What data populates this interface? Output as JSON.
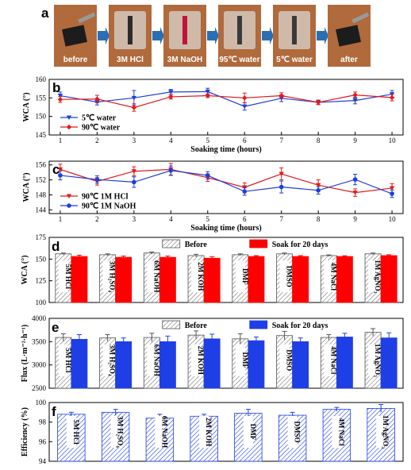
{
  "panel_a": {
    "label": "a",
    "steps": [
      "before",
      "3M HCl",
      "3M NaOH",
      "95℃ water",
      "5℃ water",
      "after"
    ],
    "photo_bg": "#b06a3c",
    "arrow_color": "#2a6fb5"
  },
  "chart_data": [
    {
      "panel": "b",
      "type": "line",
      "xlabel": "Soaking time (hours)",
      "ylabel": "WCA (°)",
      "x": [
        1,
        2,
        3,
        4,
        5,
        6,
        7,
        8,
        9,
        10
      ],
      "xlim": [
        0.7,
        10.3
      ],
      "ylim": [
        145,
        160
      ],
      "yticks": [
        145,
        150,
        155,
        160
      ],
      "series": [
        {
          "name": "5℃ water",
          "color": "#1f3fd6",
          "marker": "triangle-down",
          "values": [
            155.6,
            153.9,
            155.0,
            156.6,
            156.7,
            152.7,
            154.9,
            153.8,
            154.3,
            156.0
          ],
          "err": [
            1.0,
            0.8,
            2.0,
            0.7,
            0.9,
            1.0,
            0.9,
            0.6,
            0.9,
            1.0
          ]
        },
        {
          "name": "90℃ water",
          "color": "#e01b1b",
          "marker": "diamond",
          "values": [
            154.6,
            154.7,
            152.4,
            155.3,
            155.6,
            155.0,
            155.6,
            153.8,
            155.8,
            155.1
          ],
          "err": [
            0.8,
            1.0,
            1.0,
            0.6,
            0.5,
            1.3,
            0.8,
            0.6,
            0.8,
            0.9
          ]
        }
      ]
    },
    {
      "panel": "c",
      "type": "line",
      "xlabel": "Soaking time (hours)",
      "ylabel": "WCA (°)",
      "x": [
        1,
        2,
        3,
        4,
        5,
        6,
        7,
        8,
        9,
        10
      ],
      "xlim": [
        0.7,
        10.3
      ],
      "ylim": [
        143,
        157
      ],
      "yticks": [
        144,
        148,
        152,
        156
      ],
      "series": [
        {
          "name": "90℃  1M HCl",
          "color": "#e01b1b",
          "marker": "triangle-down",
          "values": [
            154.8,
            151.6,
            154.3,
            154.8,
            152.6,
            150.0,
            153.6,
            150.6,
            148.6,
            149.8
          ],
          "err": [
            1.4,
            1.0,
            1.2,
            1.6,
            1.0,
            1.2,
            1.6,
            1.4,
            1.0,
            1.2
          ]
        },
        {
          "name": "90℃  1M NaOH",
          "color": "#1f3fd6",
          "marker": "circle",
          "values": [
            153.2,
            152.1,
            151.4,
            154.5,
            153.2,
            148.9,
            150.1,
            149.2,
            152.1,
            148.3
          ],
          "err": [
            1.2,
            1.0,
            1.4,
            1.2,
            1.0,
            1.0,
            1.6,
            1.0,
            1.4,
            1.0
          ]
        }
      ]
    },
    {
      "panel": "d",
      "type": "bar",
      "ylabel": "WCA (°)",
      "ylim": [
        100,
        175
      ],
      "yticks": [
        100,
        125,
        150,
        175
      ],
      "categories": [
        "5M HCl",
        "3M H₂SO₄",
        "6M NaOH",
        "2M KOH",
        "DMF",
        "DMSO",
        "4M NaCl",
        "1M AgNO₃"
      ],
      "series": [
        {
          "name": "Before",
          "color": "#ffffff",
          "pattern": "hatch",
          "values": [
            156,
            155,
            157,
            154,
            155,
            156,
            154,
            156
          ],
          "err": [
            1,
            1,
            1.2,
            1.5,
            1,
            1,
            0.8,
            1
          ]
        },
        {
          "name": "Soak for 20 days",
          "color": "#ff0000",
          "values": [
            153,
            152,
            152,
            151,
            153,
            153,
            153,
            154
          ],
          "err": [
            1.5,
            1.5,
            1.5,
            1.8,
            1,
            1,
            0.8,
            1
          ]
        }
      ]
    },
    {
      "panel": "e",
      "type": "bar",
      "ylabel": "Flux (L·m⁻²·h⁻¹)",
      "ylim": [
        2500,
        4000
      ],
      "yticks": [
        2500,
        3000,
        3500,
        4000
      ],
      "categories": [
        "5M HCl",
        "3M H₂SO₄",
        "6M NaOH",
        "2M KOH",
        "DMF",
        "DMSO",
        "4M NaCl",
        "1M AgNO₃"
      ],
      "series": [
        {
          "name": "Before",
          "color": "#ffffff",
          "pattern": "hatch",
          "values": [
            3590,
            3580,
            3590,
            3640,
            3560,
            3630,
            3590,
            3700
          ],
          "err": [
            80,
            70,
            90,
            90,
            110,
            90,
            60,
            80
          ]
        },
        {
          "name": "Soak for 20 days",
          "color": "#1f3fe6",
          "values": [
            3550,
            3500,
            3500,
            3560,
            3520,
            3500,
            3600,
            3580
          ],
          "err": [
            100,
            80,
            120,
            100,
            80,
            80,
            80,
            110
          ]
        }
      ]
    },
    {
      "panel": "f",
      "type": "bar",
      "ylabel": "Efficiency (%)",
      "ylim": [
        94,
        100
      ],
      "yticks": [
        94,
        96,
        98,
        100
      ],
      "categories": [
        "5M HCl",
        "3M H₂SO₄",
        "6M NaOH",
        "2M KOH",
        "DMF",
        "DMSO",
        "4M NaCl",
        "1M AgNO₃"
      ],
      "series": [
        {
          "name": "",
          "color": "#1f3fe6",
          "pattern": "hatch",
          "values": [
            98.8,
            99.0,
            98.4,
            98.6,
            98.9,
            98.7,
            99.3,
            99.4
          ],
          "err": [
            0.2,
            0.3,
            0.4,
            0.2,
            0.4,
            0.3,
            0.2,
            0.4
          ]
        }
      ]
    }
  ]
}
